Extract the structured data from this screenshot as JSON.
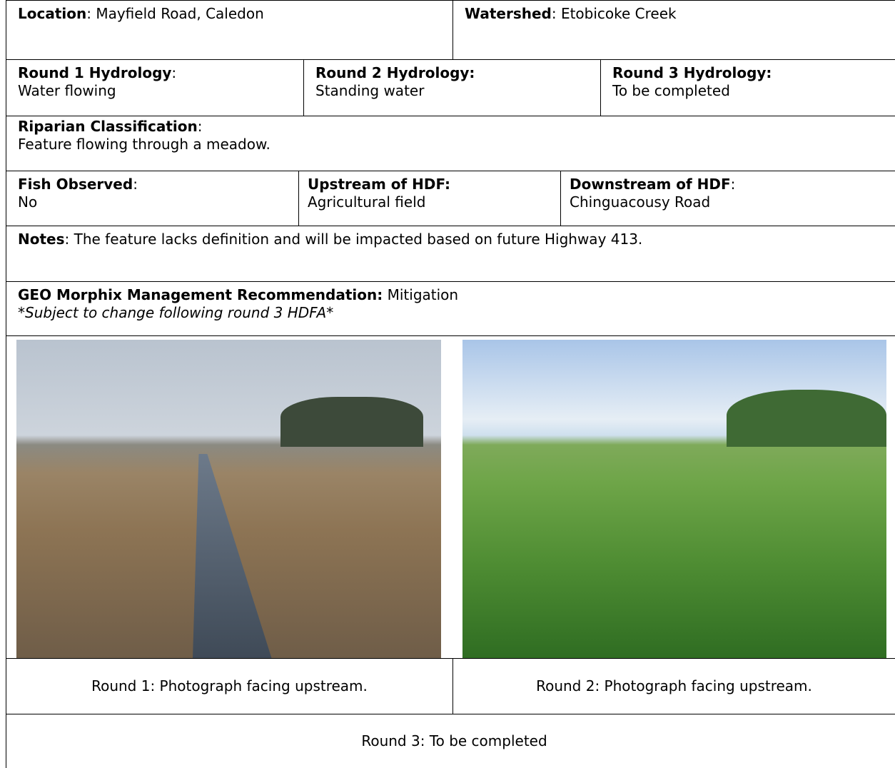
{
  "location": {
    "label": "Location",
    "text": ": Mayfield Road, Caledon"
  },
  "watershed": {
    "label": "Watershed",
    "text": ": Etobicoke Creek"
  },
  "hydrology": [
    {
      "label": "Round 1 Hydrology",
      "label_suffix": ":",
      "text": "Water flowing"
    },
    {
      "label": "Round 2 Hydrology:",
      "label_suffix": "",
      "text": "Standing water"
    },
    {
      "label": "Round 3 Hydrology:",
      "label_suffix": "",
      "text": "To be completed"
    }
  ],
  "riparian": {
    "label": "Riparian Classification",
    "label_suffix": ":",
    "text": "Feature flowing through a meadow."
  },
  "fish": {
    "label": "Fish Observed",
    "label_suffix": ":",
    "text": "No"
  },
  "upstream": {
    "label": "Upstream of HDF:",
    "label_suffix": "",
    "text": "Agricultural field"
  },
  "downstream": {
    "label": "Downstream of HDF",
    "label_suffix": ":",
    "text": "Chinguacousy Road"
  },
  "notes": {
    "label": "Notes",
    "text": ": The feature lacks definition and will be impacted based on future Highway 413."
  },
  "recommendation": {
    "label": "GEO Morphix Management Recommendation:",
    "text": " Mitigation",
    "note": "*Subject to change following round 3 HDFA*"
  },
  "captions": [
    "Round 1: Photograph facing upstream.",
    "Round 2: Photograph facing upstream.",
    "Round 3: To be completed"
  ]
}
